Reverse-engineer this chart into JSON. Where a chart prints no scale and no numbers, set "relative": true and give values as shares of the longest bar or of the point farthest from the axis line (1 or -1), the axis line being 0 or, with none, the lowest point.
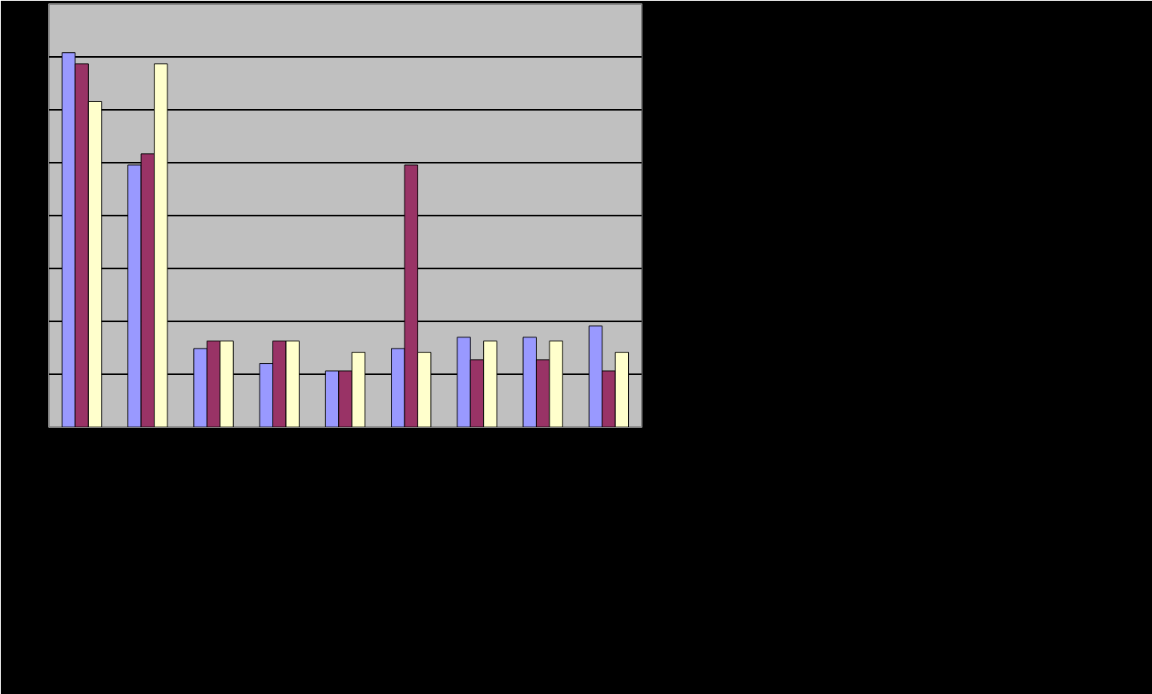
{
  "chart_data": {
    "type": "bar",
    "relative": true,
    "categories": [
      null,
      null,
      null,
      null,
      null,
      null,
      null,
      null,
      null
    ],
    "series": [
      {
        "color": "#9999ff",
        "values": [
          1,
          0.7,
          0.21,
          0.17,
          0.15,
          0.21,
          0.24,
          0.24,
          0.27
        ]
      },
      {
        "color": "#993366",
        "values": [
          0.97,
          0.73,
          0.23,
          0.23,
          0.15,
          0.7,
          0.18,
          0.18,
          0.15
        ]
      },
      {
        "color": "#ffffcc",
        "values": [
          0.87,
          0.97,
          0.23,
          0.23,
          0.2,
          0.2,
          0.23,
          0.23,
          0.2
        ]
      }
    ],
    "grid": "y"
  }
}
